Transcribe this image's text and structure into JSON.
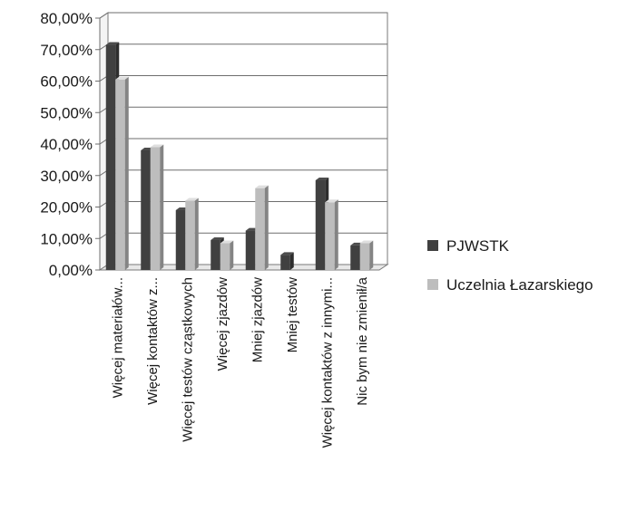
{
  "chart_data": {
    "type": "bar",
    "style": "3d-clustered-column",
    "categories": [
      "Więcej materiałów...",
      "Więcej kontaktów z...",
      "Więcej testów cząstkowych",
      "Więcej zjazdów",
      "Mniej zjazdów",
      "Mniej testów",
      "Więcej kontaktów z innymi...",
      "Nic bym nie zmienił/a"
    ],
    "series": [
      {
        "name": "PJWSTK",
        "values": [
          71.5,
          38.0,
          19.0,
          9.5,
          12.5,
          4.8,
          28.5,
          7.8
        ]
      },
      {
        "name": "Uczelnia Łazarskiego",
        "values": [
          60.5,
          39.0,
          22.0,
          8.5,
          26.0,
          0.0,
          21.5,
          8.5
        ]
      }
    ],
    "ylim": [
      0,
      80
    ],
    "yticks": [
      "0,00%",
      "10,00%",
      "20,00%",
      "30,00%",
      "40,00%",
      "50,00%",
      "60,00%",
      "70,00%",
      "80,00%"
    ],
    "grid": true,
    "legend_position": "right",
    "colors": {
      "PJWSTK": "#404040",
      "Uczelnia Łazarskiego": "#bdbdbd"
    }
  }
}
